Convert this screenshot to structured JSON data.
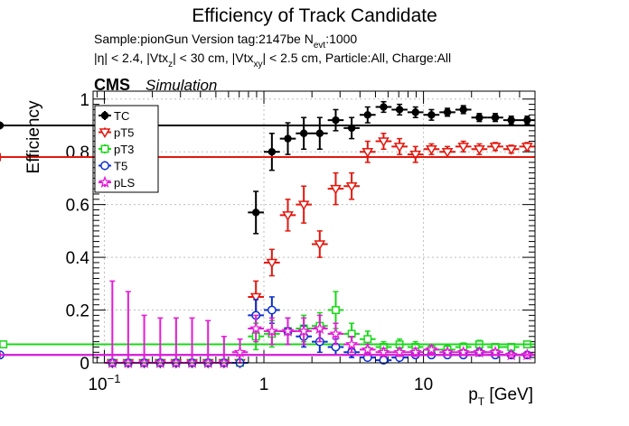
{
  "colors": {
    "TC": "#000000",
    "pT5": "#e3170d",
    "pT3": "#18d818",
    "T5": "#0a2fd0",
    "pLS": "#e51ad6",
    "grid": "#bdbdbd"
  },
  "labels": {
    "cms": "CMS",
    "simulation": "Simulation",
    "sample_line": "Sample:pionGun   Version tag:2147be  N",
    "nevt_sub": "evt",
    "nevt_val": ":1000",
    "cuts_a": "|η| < 2.4, |Vtx",
    "cuts_a_sub": "z",
    "cuts_b": "| < 30 cm, |Vtx",
    "cuts_b_sub": "xy",
    "cuts_c": "| < 2.5 cm, Particle:All, Charge:All",
    "xlabel_main": "p",
    "xlabel_sub": "T",
    "xlabel_unit": " [GeV]"
  },
  "chart_data": {
    "type": "scatter",
    "title": "Efficiency of Track Candidate",
    "ylabel": "Efficiency",
    "xlim": [
      0.085,
      50
    ],
    "ylim": [
      0,
      1.03
    ],
    "xscale": "log",
    "grid": true,
    "legend_position": "top-left",
    "x_ticks": [
      {
        "value": 0.1,
        "base": "10",
        "exp": "−1"
      },
      {
        "value": 1,
        "base": "1",
        "exp": ""
      },
      {
        "value": 10,
        "base": "10",
        "exp": ""
      }
    ],
    "y_ticks": [
      {
        "value": 0,
        "label": "0"
      },
      {
        "value": 0.2,
        "label": "0.2"
      },
      {
        "value": 0.4,
        "label": "0.4"
      },
      {
        "value": 0.6,
        "label": "0.6"
      },
      {
        "value": 0.8,
        "label": "0.8"
      },
      {
        "value": 1,
        "label": "1"
      }
    ],
    "x_bins": [
      0.1,
      0.126,
      0.158,
      0.2,
      0.251,
      0.316,
      0.398,
      0.501,
      0.631,
      0.794,
      1.0,
      1.259,
      1.585,
      1.995,
      2.512,
      3.162,
      3.981,
      5.012,
      6.31,
      7.943,
      10.0,
      12.589,
      15.849,
      19.953,
      25.119,
      31.623,
      39.811,
      50.119
    ],
    "series": [
      {
        "name": "TC",
        "key": "TC",
        "marker": "filled-circle",
        "values": [
          0,
          0,
          0,
          0,
          0,
          0,
          0,
          0,
          0,
          0.57,
          0.8,
          0.85,
          0.87,
          0.87,
          0.92,
          0.89,
          0.94,
          0.97,
          0.96,
          0.95,
          0.94,
          0.95,
          0.96,
          0.93,
          0.93,
          0.92,
          0.92,
          0.9
        ],
        "err": [
          0,
          0,
          0,
          0,
          0,
          0,
          0,
          0,
          0,
          0.08,
          0.07,
          0.06,
          0.06,
          0.06,
          0.04,
          0.04,
          0.03,
          0.02,
          0.02,
          0.02,
          0.02,
          0.015,
          0.015,
          0.015,
          0.015,
          0.015,
          0.015,
          0.015
        ]
      },
      {
        "name": "pT5",
        "key": "pT5",
        "marker": "open-triangle-down",
        "values": [
          0,
          0,
          0,
          0,
          0,
          0,
          0,
          0,
          0,
          0.25,
          0.38,
          0.56,
          0.6,
          0.45,
          0.66,
          0.67,
          0.8,
          0.84,
          0.82,
          0.79,
          0.81,
          0.8,
          0.82,
          0.81,
          0.82,
          0.81,
          0.82,
          0.78
        ],
        "err": [
          0,
          0,
          0,
          0,
          0,
          0,
          0,
          0,
          0,
          0.06,
          0.05,
          0.06,
          0.07,
          0.05,
          0.06,
          0.05,
          0.04,
          0.03,
          0.03,
          0.03,
          0.02,
          0.02,
          0.02,
          0.02,
          0.015,
          0.015,
          0.015,
          0.015
        ]
      },
      {
        "name": "pT3",
        "key": "pT3",
        "marker": "open-square",
        "values": [
          0,
          0,
          0,
          0,
          0,
          0,
          0,
          0,
          0,
          0.1,
          0.11,
          0.12,
          0.13,
          0.14,
          0.2,
          0.11,
          0.09,
          0.06,
          0.07,
          0.06,
          0.05,
          0.05,
          0.06,
          0.07,
          0.06,
          0.06,
          0.07,
          0.07
        ],
        "err": [
          0,
          0,
          0,
          0,
          0,
          0,
          0,
          0,
          0,
          0.05,
          0.05,
          0.05,
          0.05,
          0.05,
          0.07,
          0.04,
          0.03,
          0.02,
          0.02,
          0.02,
          0.015,
          0.015,
          0.015,
          0.015,
          0.01,
          0.01,
          0.01,
          0.01
        ]
      },
      {
        "name": "T5",
        "key": "T5",
        "marker": "open-circle",
        "values": [
          0,
          0,
          0,
          0,
          0,
          0,
          0,
          0,
          0,
          0.18,
          0.2,
          0.12,
          0.1,
          0.08,
          0.06,
          0.04,
          0.02,
          0.01,
          0.02,
          0.03,
          0.03,
          0.03,
          0.03,
          0.04,
          0.03,
          0.03,
          0.03,
          0.03
        ],
        "err": [
          0,
          0,
          0,
          0,
          0,
          0,
          0,
          0,
          0,
          0.06,
          0.05,
          0.05,
          0.04,
          0.04,
          0.03,
          0.02,
          0.01,
          0.01,
          0.01,
          0.01,
          0.01,
          0.01,
          0.01,
          0.01,
          0.01,
          0.01,
          0.01,
          0.01
        ]
      },
      {
        "name": "pLS",
        "key": "pLS",
        "marker": "open-star",
        "values": [
          0,
          0,
          0,
          0,
          0,
          0,
          0,
          0,
          0.04,
          0.13,
          0.12,
          0.12,
          0.12,
          0.13,
          0.11,
          0.07,
          0.05,
          0.04,
          0.04,
          0.04,
          0.05,
          0.04,
          0.04,
          0.04,
          0.04,
          0.03,
          0.03,
          0.03
        ],
        "err": [
          0.31,
          0.27,
          0.18,
          0.17,
          0.17,
          0.17,
          0.16,
          0.1,
          0.05,
          0.05,
          0.05,
          0.05,
          0.05,
          0.05,
          0.04,
          0.03,
          0.02,
          0.015,
          0.015,
          0.015,
          0.015,
          0.01,
          0.01,
          0.01,
          0.01,
          0.01,
          0.01,
          0.01
        ],
        "err_low_zero": true
      }
    ]
  }
}
